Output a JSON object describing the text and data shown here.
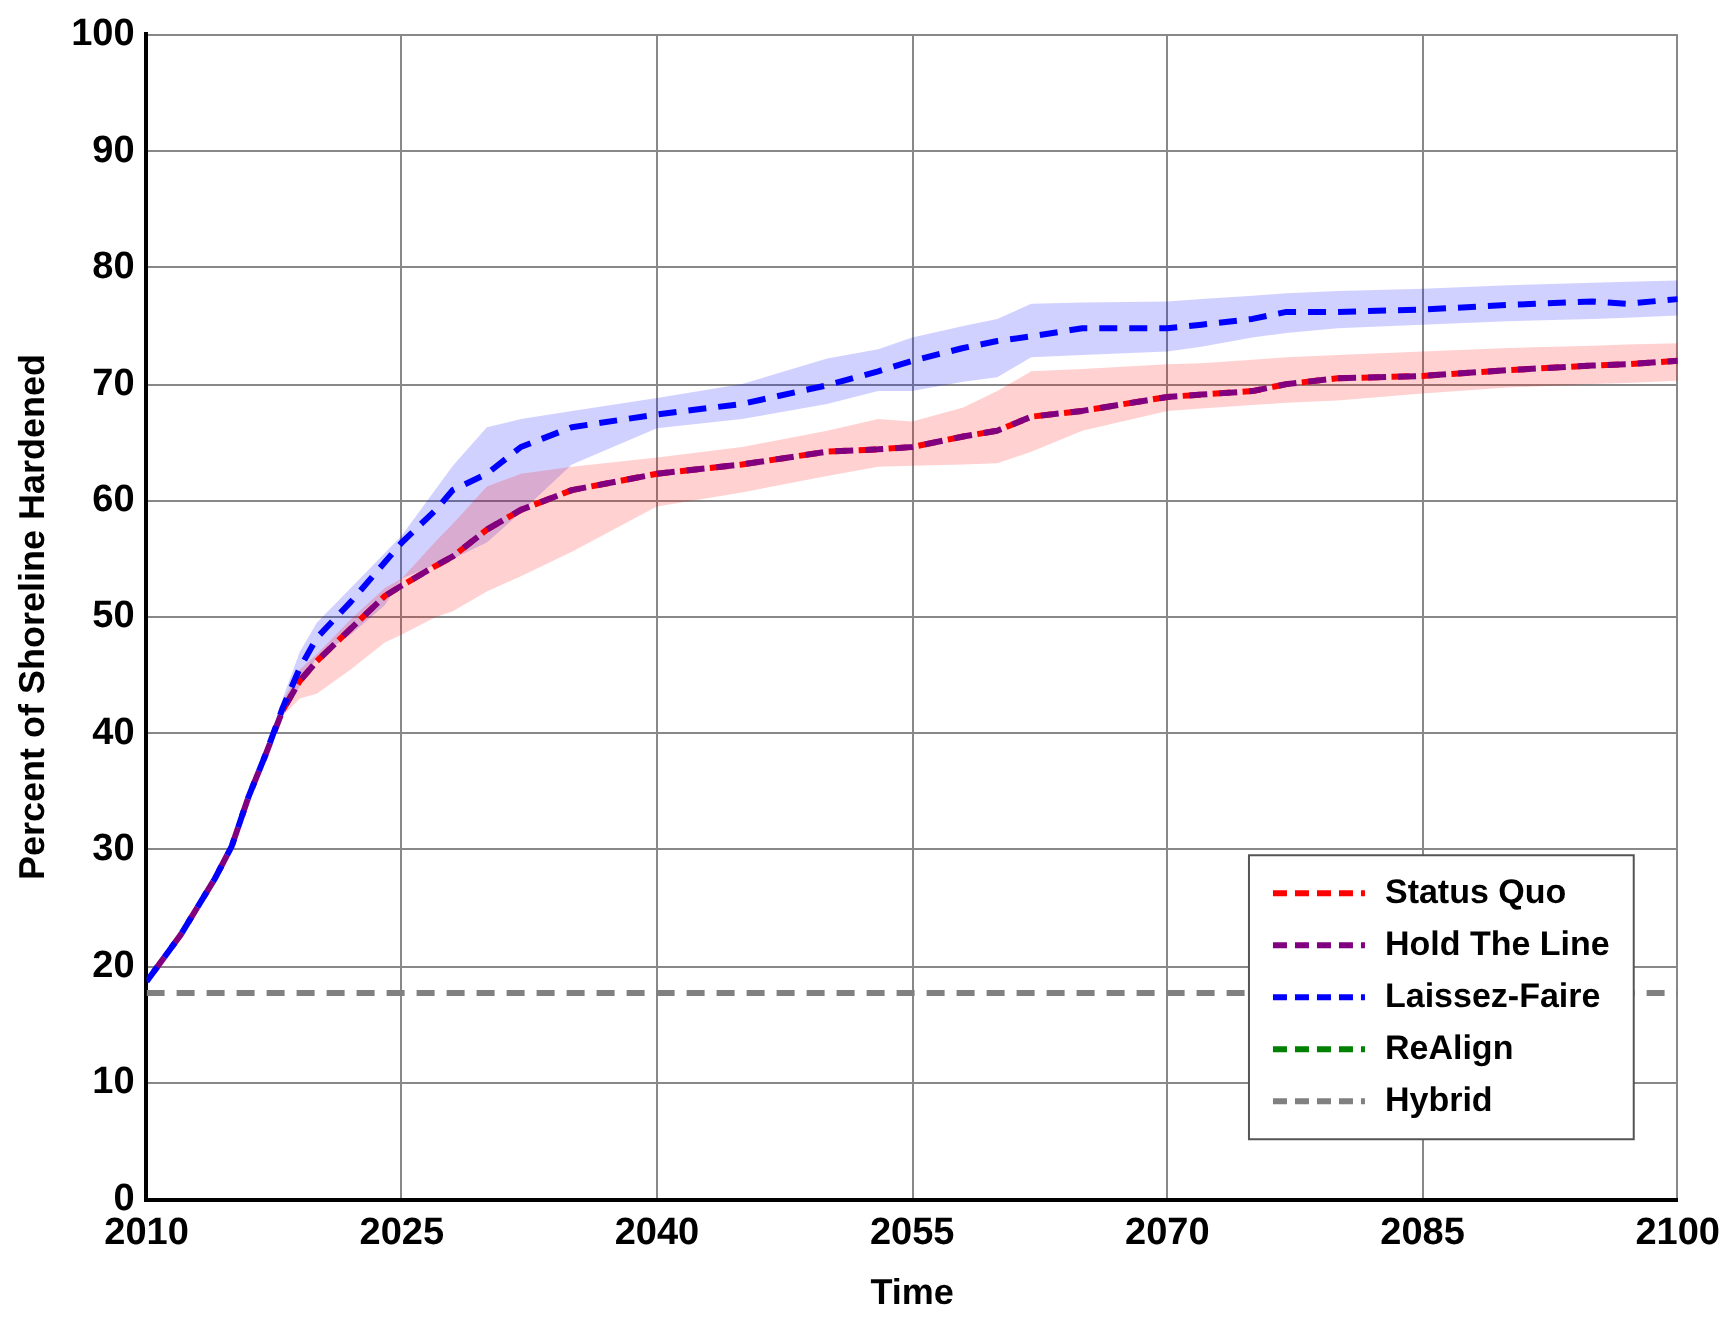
{
  "chart_data": {
    "type": "line",
    "xlabel": "Time",
    "ylabel": "Percent of Shoreline Hardened",
    "x": [
      2010,
      2012,
      2014,
      2015,
      2016,
      2017,
      2018,
      2019,
      2020,
      2022,
      2024,
      2025,
      2027,
      2028,
      2030,
      2032,
      2035,
      2040,
      2045,
      2050,
      2053,
      2055,
      2058,
      2060,
      2062,
      2065,
      2070,
      2072,
      2075,
      2077,
      2080,
      2085,
      2090,
      2095,
      2097,
      2100
    ],
    "series": [
      {
        "name": "Status Quo",
        "color": "#ff0000",
        "values": [
          null,
          null,
          null,
          null,
          null,
          null,
          42.0,
          44.5,
          46.2,
          49.0,
          51.8,
          52.7,
          54.4,
          55.2,
          57.5,
          59.2,
          60.9,
          62.3,
          63.1,
          64.2,
          64.4,
          64.6,
          65.5,
          66.0,
          67.2,
          67.7,
          68.9,
          69.1,
          69.4,
          70.0,
          70.5,
          70.7,
          71.2,
          71.6,
          71.7,
          72.0
        ],
        "lower": [
          18.5,
          22.4,
          27.2,
          30.0,
          34.2,
          37.8,
          41.5,
          43.0,
          43.4,
          45.5,
          47.8,
          48.5,
          50.0,
          50.5,
          52.2,
          53.5,
          55.6,
          59.5,
          60.7,
          62.1,
          62.9,
          63.0,
          63.1,
          63.2,
          64.2,
          66.0,
          67.7,
          67.9,
          68.2,
          68.4,
          68.6,
          69.2,
          69.7,
          70.0,
          70.1,
          70.3
        ],
        "upper": [
          19.0,
          23.0,
          27.8,
          30.6,
          35.0,
          38.6,
          42.8,
          45.5,
          46.8,
          49.8,
          52.5,
          53.3,
          56.5,
          58.0,
          61.2,
          62.3,
          62.9,
          63.7,
          64.6,
          66.0,
          67.0,
          66.8,
          68.0,
          69.4,
          71.1,
          71.3,
          71.7,
          71.8,
          72.1,
          72.3,
          72.5,
          72.8,
          73.1,
          73.3,
          73.4,
          73.5
        ]
      },
      {
        "name": "Hold The Line",
        "color": "#800080",
        "values": [
          18.7,
          22.7,
          27.5,
          30.3,
          34.6,
          38.2,
          42.0,
          44.5,
          46.2,
          49.0,
          51.8,
          52.7,
          54.4,
          55.2,
          57.5,
          59.2,
          60.9,
          62.3,
          63.1,
          64.2,
          64.4,
          64.6,
          65.5,
          66.0,
          67.2,
          67.7,
          68.9,
          69.1,
          69.4,
          70.0,
          70.5,
          70.7,
          71.2,
          71.6,
          71.7,
          72.0
        ]
      },
      {
        "name": "Laissez-Faire",
        "color": "#0000ff",
        "values": [
          18.7,
          22.7,
          27.5,
          30.3,
          34.6,
          38.2,
          42.2,
          45.6,
          48.2,
          51.3,
          54.7,
          56.4,
          59.2,
          60.9,
          62.3,
          64.6,
          66.3,
          67.4,
          68.3,
          69.9,
          71.1,
          72.0,
          73.1,
          73.7,
          74.1,
          74.8,
          74.8,
          75.1,
          75.6,
          76.2,
          76.2,
          76.4,
          76.8,
          77.1,
          76.9,
          77.3
        ],
        "lower": [
          18.5,
          22.4,
          27.2,
          30.0,
          34.2,
          37.8,
          41.5,
          44.0,
          46.5,
          48.5,
          51.0,
          53.3,
          54.5,
          55.0,
          56.4,
          59.0,
          63.1,
          66.2,
          67.0,
          68.3,
          69.4,
          69.4,
          70.2,
          70.6,
          72.3,
          72.5,
          72.8,
          73.2,
          74.0,
          74.4,
          74.8,
          75.1,
          75.4,
          75.6,
          75.7,
          75.9
        ],
        "upper": [
          19.0,
          23.0,
          27.8,
          30.6,
          35.0,
          38.6,
          43.0,
          47.0,
          49.5,
          52.5,
          55.5,
          57.0,
          61.0,
          63.0,
          66.3,
          67.0,
          67.7,
          68.8,
          70.0,
          72.2,
          73.0,
          74.0,
          75.0,
          75.6,
          76.9,
          77.0,
          77.1,
          77.3,
          77.6,
          77.8,
          78.0,
          78.2,
          78.5,
          78.7,
          78.8,
          78.9
        ]
      },
      {
        "name": "ReAlign",
        "color": "#008000",
        "values": [
          null,
          null,
          null,
          null,
          null,
          null,
          null,
          null,
          null,
          null,
          null,
          null,
          null,
          null,
          null,
          null,
          null,
          null,
          null,
          null,
          null,
          null,
          null,
          null,
          null,
          null,
          null,
          null,
          null,
          null,
          null,
          null,
          null,
          null,
          null,
          null
        ]
      },
      {
        "name": "Hybrid",
        "color": "#808080",
        "x": [
          2010,
          2100
        ],
        "values": [
          17.7,
          17.7
        ]
      }
    ],
    "xlim": [
      2010,
      2100
    ],
    "xticks": [
      2010,
      2025,
      2040,
      2055,
      2070,
      2085,
      2100
    ],
    "ylim": [
      0,
      100
    ],
    "yticks": [
      0,
      10,
      20,
      30,
      40,
      50,
      60,
      70,
      80,
      90,
      100
    ],
    "grid": true,
    "legend": "bottom right",
    "line_style": "dashed",
    "marker": "none"
  }
}
